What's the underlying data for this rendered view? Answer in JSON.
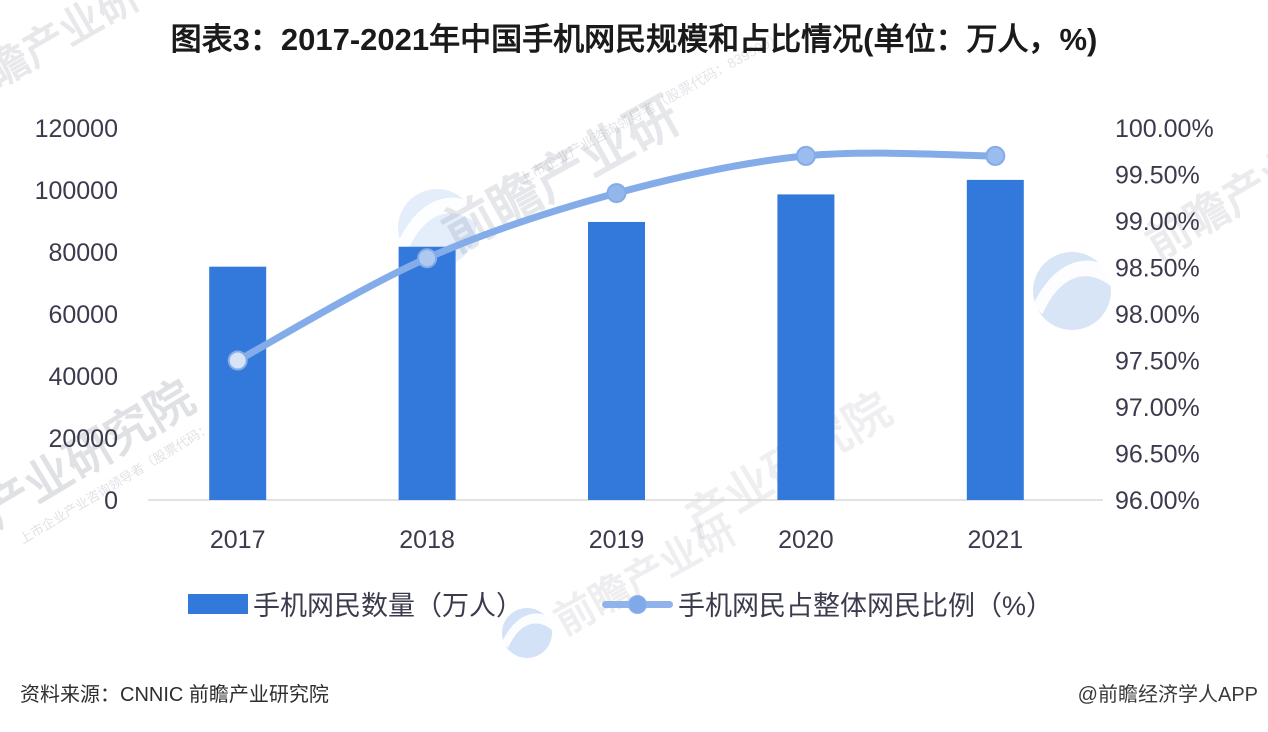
{
  "title": "图表3：2017-2021年中国手机网民规模和占比情况(单位：万人，%)",
  "chart_data": {
    "type": "combo-bar-line",
    "categories": [
      "2017",
      "2018",
      "2019",
      "2020",
      "2021"
    ],
    "series": [
      {
        "name": "手机网民数量（万人）",
        "type": "bar",
        "axis": "left",
        "values": [
          75265,
          81698,
          89690,
          98576,
          103258
        ],
        "color": "#3379DC"
      },
      {
        "name": "手机网民占整体网民比例（%）",
        "type": "line",
        "axis": "right",
        "values": [
          97.5,
          98.6,
          99.3,
          99.7,
          99.7
        ],
        "color": "#84ACE8",
        "point_fills": [
          "#D8E3F6",
          "#AFC8F0",
          "#93B6EB",
          "#9ABCEE",
          "#9ABCEE"
        ]
      }
    ],
    "left_axis": {
      "min": 0,
      "max": 120000,
      "step": 20000,
      "tick_labels": [
        "0",
        "20000",
        "40000",
        "60000",
        "80000",
        "100000",
        "120000"
      ]
    },
    "right_axis": {
      "min": 96,
      "max": 100,
      "step": 0.5,
      "tick_labels": [
        "96.00%",
        "96.50%",
        "97.00%",
        "97.50%",
        "98.00%",
        "98.50%",
        "99.00%",
        "99.50%",
        "100.00%"
      ]
    },
    "grid": false,
    "legend_position": "bottom",
    "axis_line_color": "#D9D9D9",
    "tick_color": "#3b3b4d"
  },
  "footer": {
    "source": "资料来源：CNNIC 前瞻产业研究院",
    "attribution": "@前瞻经济学人APP"
  },
  "watermark": {
    "brand_short": "前瞻产业研",
    "brand_mid": "产业研究院",
    "brand_full": "前瞻产业研究院",
    "tagline": "上市企业产业咨询领导者（股票代码：839599）"
  }
}
